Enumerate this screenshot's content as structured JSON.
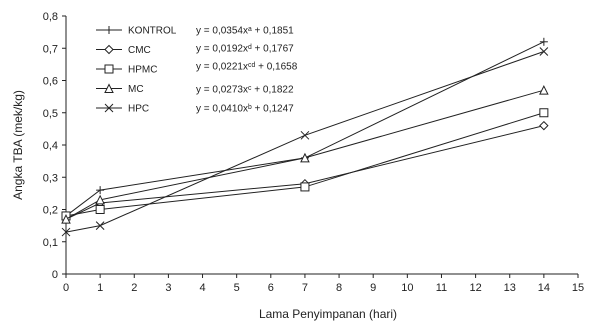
{
  "chart_data": {
    "type": "line",
    "title": "",
    "xlabel": "Lama Penyimpanan (hari)",
    "ylabel": "Angka TBA (mek/kg)",
    "xlim": [
      0,
      15
    ],
    "ylim": [
      0,
      0.8
    ],
    "x_ticks": [
      0,
      1,
      2,
      3,
      4,
      5,
      6,
      7,
      8,
      9,
      10,
      11,
      12,
      13,
      14,
      15
    ],
    "x_tick_labels": [
      "0",
      "1",
      "2",
      "3",
      "4",
      "5",
      "6",
      "7",
      "8",
      "9",
      "10",
      "11",
      "12",
      "13",
      "14",
      "15"
    ],
    "y_ticks": [
      0,
      0.1,
      0.2,
      0.3,
      0.4,
      0.5,
      0.6,
      0.7,
      0.8
    ],
    "y_tick_labels": [
      "0",
      "0,1",
      "0,2",
      "0,3",
      "0,4",
      "0,5",
      "0,6",
      "0,7",
      "0,8"
    ],
    "grid": false,
    "legend_position": "top-left",
    "x": [
      0,
      1,
      7,
      14
    ],
    "series": [
      {
        "name": "KONTROL",
        "marker": "plus",
        "values": [
          0.18,
          0.26,
          0.36,
          0.72
        ],
        "equation": "y = 0,0354xᵃ + 0,1851"
      },
      {
        "name": "CMC",
        "marker": "diamond",
        "values": [
          0.17,
          0.22,
          0.28,
          0.46
        ],
        "equation": "y = 0,0192xᵈ + 0,1767"
      },
      {
        "name": "HPMC",
        "marker": "square",
        "values": [
          0.18,
          0.2,
          0.27,
          0.5
        ],
        "equation": "y = 0,0221xᶜᵈ + 0,1658"
      },
      {
        "name": "MC",
        "marker": "triangle",
        "values": [
          0.17,
          0.23,
          0.36,
          0.57
        ],
        "equation": "y = 0,0273xᶜ + 0,1822"
      },
      {
        "name": "HPC",
        "marker": "cross",
        "values": [
          0.13,
          0.15,
          0.43,
          0.69
        ],
        "equation": "y = 0,0410xᵇ + 0,1247"
      }
    ]
  }
}
